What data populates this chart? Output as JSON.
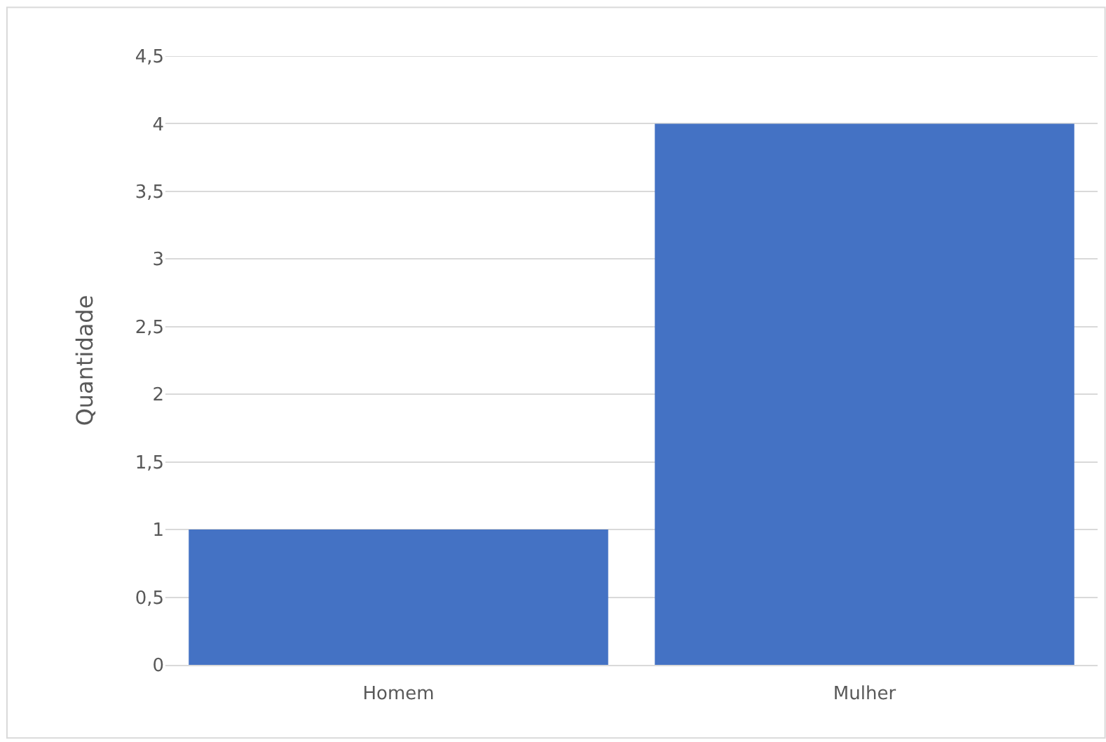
{
  "chart_data": {
    "type": "bar",
    "ylabel": "Quantidade",
    "categories": [
      "Homem",
      "Mulher"
    ],
    "series": [
      {
        "color": "#4472c4",
        "values": [
          1,
          4
        ]
      }
    ],
    "ylim": [
      0,
      4.5
    ],
    "yticks": [
      0,
      {
        "value": 0.5,
        "label": "0,5"
      },
      1,
      {
        "value": 1.5,
        "label": "1,5"
      },
      2,
      {
        "value": 2.5,
        "label": "2,5"
      },
      3,
      {
        "value": 3.5,
        "label": "3,5"
      },
      4,
      {
        "value": 4.5,
        "label": "4,5"
      }
    ],
    "grid": "y"
  }
}
